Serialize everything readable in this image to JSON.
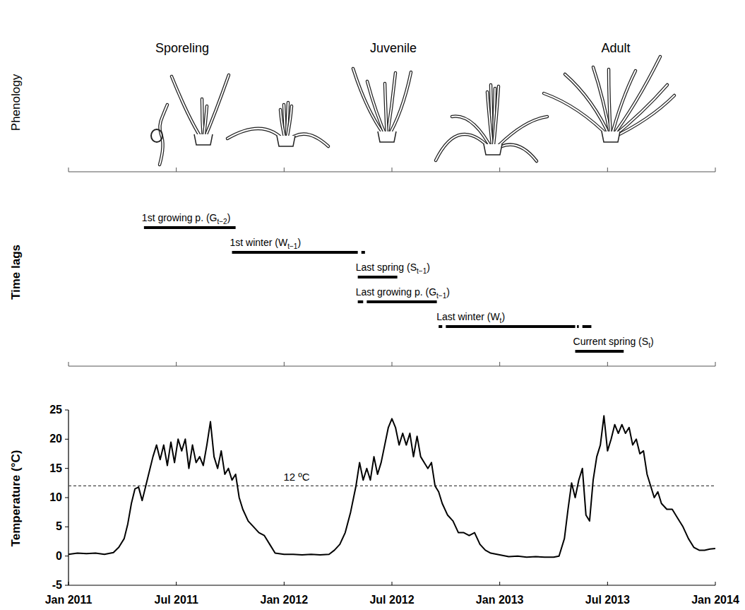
{
  "phenology": {
    "label": "Phenology",
    "stages": [
      "Sporeling",
      "Juvenile",
      "Adult"
    ]
  },
  "time_lags": {
    "label": "Time lags",
    "bars": [
      {
        "label": {
          "main": "1st growing p. (G",
          "sub": "t−2",
          "after": ")"
        },
        "segments": [
          [
            4.2,
            9.3
          ]
        ]
      },
      {
        "label": {
          "main": "1st winter (W",
          "sub": "t−1",
          "after": ")"
        },
        "segments": [
          [
            9.1,
            16.1
          ],
          [
            16.3,
            16.5
          ]
        ]
      },
      {
        "label": {
          "main": "Last spring (S",
          "sub": "t−1",
          "after": ")"
        },
        "segments": [
          [
            16.1,
            18.3
          ]
        ]
      },
      {
        "label": {
          "main": "Last growing p. (G",
          "sub": "t−1",
          "after": ")"
        },
        "segments": [
          [
            16.1,
            16.4
          ],
          [
            16.6,
            20.5
          ]
        ]
      },
      {
        "label": {
          "main": "Last winter (W",
          "sub": "t",
          "after": ")"
        },
        "segments": [
          [
            20.6,
            20.8
          ],
          [
            21.0,
            28.2
          ],
          [
            28.3,
            28.4
          ],
          [
            28.6,
            29.1
          ]
        ]
      },
      {
        "label": {
          "main": "Current spring (S",
          "sub": "t",
          "after": ")"
        },
        "segments": [
          [
            28.2,
            30.9
          ]
        ]
      }
    ]
  },
  "chart_data": {
    "type": "line",
    "ylabel": "Temperature (°C)",
    "color": "#000000",
    "grid": false,
    "xlim": [
      0,
      36
    ],
    "ylim": [
      -5,
      25
    ],
    "xticks": [
      {
        "value": 0,
        "label": "Jan 2011"
      },
      {
        "value": 6,
        "label": "Jul 2011"
      },
      {
        "value": 12,
        "label": "Jan 2012"
      },
      {
        "value": 18,
        "label": "Jul 2012"
      },
      {
        "value": 24,
        "label": "Jan 2013"
      },
      {
        "value": 30,
        "label": "Jul 2013"
      },
      {
        "value": 36,
        "label": "Jan 2014"
      }
    ],
    "yticks": [
      -5,
      0,
      5,
      10,
      15,
      20,
      25
    ],
    "reference_line": {
      "value": 12,
      "label": "12 ºC",
      "line_style": "dashed"
    },
    "x": [
      0,
      0.5,
      1,
      1.5,
      2,
      2.5,
      2.8,
      3.1,
      3.3,
      3.5,
      3.7,
      3.9,
      4.1,
      4.3,
      4.5,
      4.7,
      4.9,
      5.1,
      5.3,
      5.5,
      5.7,
      5.9,
      6.1,
      6.3,
      6.5,
      6.7,
      6.9,
      7.1,
      7.3,
      7.5,
      7.7,
      7.9,
      8.1,
      8.3,
      8.5,
      8.7,
      8.9,
      9.1,
      9.3,
      9.5,
      9.7,
      10,
      10.3,
      10.6,
      10.9,
      11.2,
      11.5,
      12,
      12.5,
      13,
      13.5,
      14,
      14.5,
      14.8,
      15.1,
      15.4,
      15.7,
      16,
      16.2,
      16.4,
      16.6,
      16.8,
      17,
      17.2,
      17.4,
      17.6,
      17.8,
      18,
      18.2,
      18.4,
      18.6,
      18.8,
      19,
      19.2,
      19.4,
      19.6,
      19.8,
      20,
      20.2,
      20.4,
      20.6,
      20.8,
      21.1,
      21.4,
      21.7,
      22,
      22.3,
      22.6,
      22.9,
      23.2,
      23.5,
      24,
      24.5,
      25,
      25.5,
      26,
      26.5,
      27,
      27.3,
      27.6,
      27.8,
      28,
      28.2,
      28.4,
      28.6,
      28.8,
      29,
      29.2,
      29.4,
      29.6,
      29.8,
      30,
      30.2,
      30.4,
      30.6,
      30.8,
      31,
      31.2,
      31.4,
      31.6,
      31.8,
      32,
      32.2,
      32.4,
      32.6,
      32.8,
      33,
      33.3,
      33.6,
      33.9,
      34.2,
      34.5,
      34.8,
      35.1,
      35.4,
      35.7,
      36
    ],
    "values": [
      0.3,
      0.5,
      0.4,
      0.5,
      0.3,
      0.6,
      1.5,
      3,
      5.5,
      9,
      11.5,
      11.8,
      9.5,
      12,
      14.5,
      17,
      19,
      16.5,
      19,
      15.5,
      19.5,
      16,
      20,
      18,
      20,
      15,
      19,
      16,
      17,
      15.5,
      19,
      23,
      17,
      15,
      18,
      14,
      15,
      13,
      14,
      10,
      8,
      6,
      5,
      4,
      3.5,
      2,
      0.5,
      0.3,
      0.3,
      0.2,
      0.3,
      0.2,
      0.3,
      1,
      2,
      4,
      7.5,
      12,
      16,
      13,
      15,
      13,
      17,
      14,
      16,
      19,
      22,
      23.5,
      22,
      19,
      21,
      19,
      21,
      17,
      20.5,
      17,
      16,
      15,
      16,
      12,
      11,
      9,
      7,
      6,
      4,
      4,
      3.5,
      4,
      2,
      1,
      0.5,
      0.2,
      -0.1,
      0,
      -0.2,
      -0.1,
      -0.2,
      -0.2,
      0,
      3,
      8,
      12.5,
      10,
      13,
      15,
      7,
      6,
      13,
      17,
      19,
      24,
      18,
      20,
      22.5,
      21,
      22.5,
      21,
      22,
      19,
      20,
      17.5,
      18,
      14,
      12,
      10,
      11,
      9,
      8,
      8,
      6.5,
      5,
      3,
      1.5,
      1,
      1,
      1.2,
      1.3
    ]
  }
}
